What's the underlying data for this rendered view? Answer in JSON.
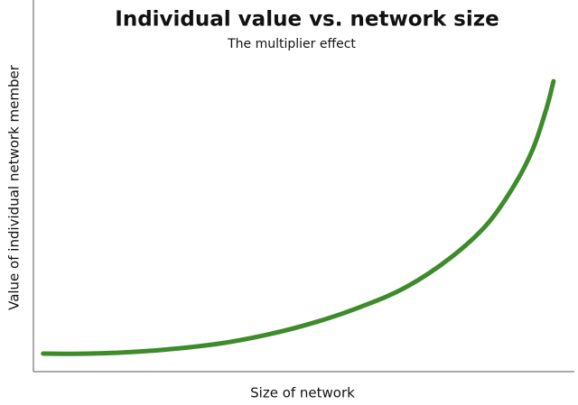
{
  "chart_data": {
    "type": "line",
    "title": "Individual value vs. network size",
    "subtitle": "The multiplier effect",
    "xlabel": "Size of network",
    "ylabel": "Value of individual network member",
    "x": [
      1.8,
      10.5,
      18.9,
      27.3,
      35.6,
      44.0,
      52.3,
      60.7,
      69.1,
      77.4,
      84.1,
      89.1,
      92.5,
      95.0,
      96.3
    ],
    "values": [
      4.9,
      4.9,
      5.4,
      6.4,
      7.9,
      10.3,
      13.5,
      17.7,
      23.1,
      31.2,
      40.3,
      50.9,
      60.7,
      71.7,
      79.1
    ],
    "color": "#3d8b2a",
    "xlim": [
      0,
      100
    ],
    "ylim": [
      0,
      100
    ]
  }
}
